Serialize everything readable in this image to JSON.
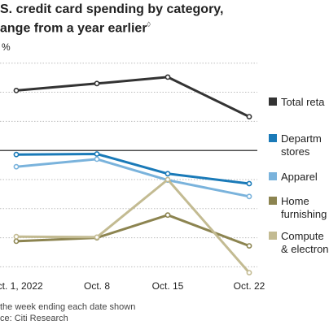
{
  "title": {
    "line1": "S. credit card spending by category,",
    "line2": "ange from a year earlier",
    "marker": "◊"
  },
  "footer": {
    "note": "the week ending each date shown",
    "source": "ce: Citi Research"
  },
  "chart_data": {
    "type": "line",
    "y_unit_label": "%",
    "x": [
      "Oct. 1, 2022",
      "Oct. 8",
      "Oct. 15",
      "Oct. 22"
    ],
    "series": [
      {
        "name": "Total reta",
        "color": "#333333",
        "values": [
          10.3,
          11.5,
          12.6,
          5.8
        ]
      },
      {
        "name": "Departm stores",
        "color": "#1a7ab8",
        "values": [
          -0.7,
          -0.6,
          -4.0,
          -5.7
        ]
      },
      {
        "name": "Apparel",
        "color": "#7ab3dc",
        "values": [
          -2.8,
          -1.5,
          -5.1,
          -7.9
        ]
      },
      {
        "name": "Home furnishing",
        "color": "#8c8450",
        "values": [
          -15.6,
          -15.0,
          -11.1,
          -16.4
        ]
      },
      {
        "name": "Compute & electron",
        "color": "#c3bb92",
        "values": [
          -14.8,
          -14.9,
          -5.0,
          -21.0
        ]
      }
    ],
    "legend_lines": [
      [
        "Total reta"
      ],
      [
        "Departm",
        "stores"
      ],
      [
        "Apparel"
      ],
      [
        "Home",
        "furnishing"
      ],
      [
        "Compute",
        "& electron"
      ]
    ],
    "ylim": [
      -20.5,
      16.5
    ],
    "grid": true,
    "zero_line": true,
    "legend_position": "right"
  }
}
